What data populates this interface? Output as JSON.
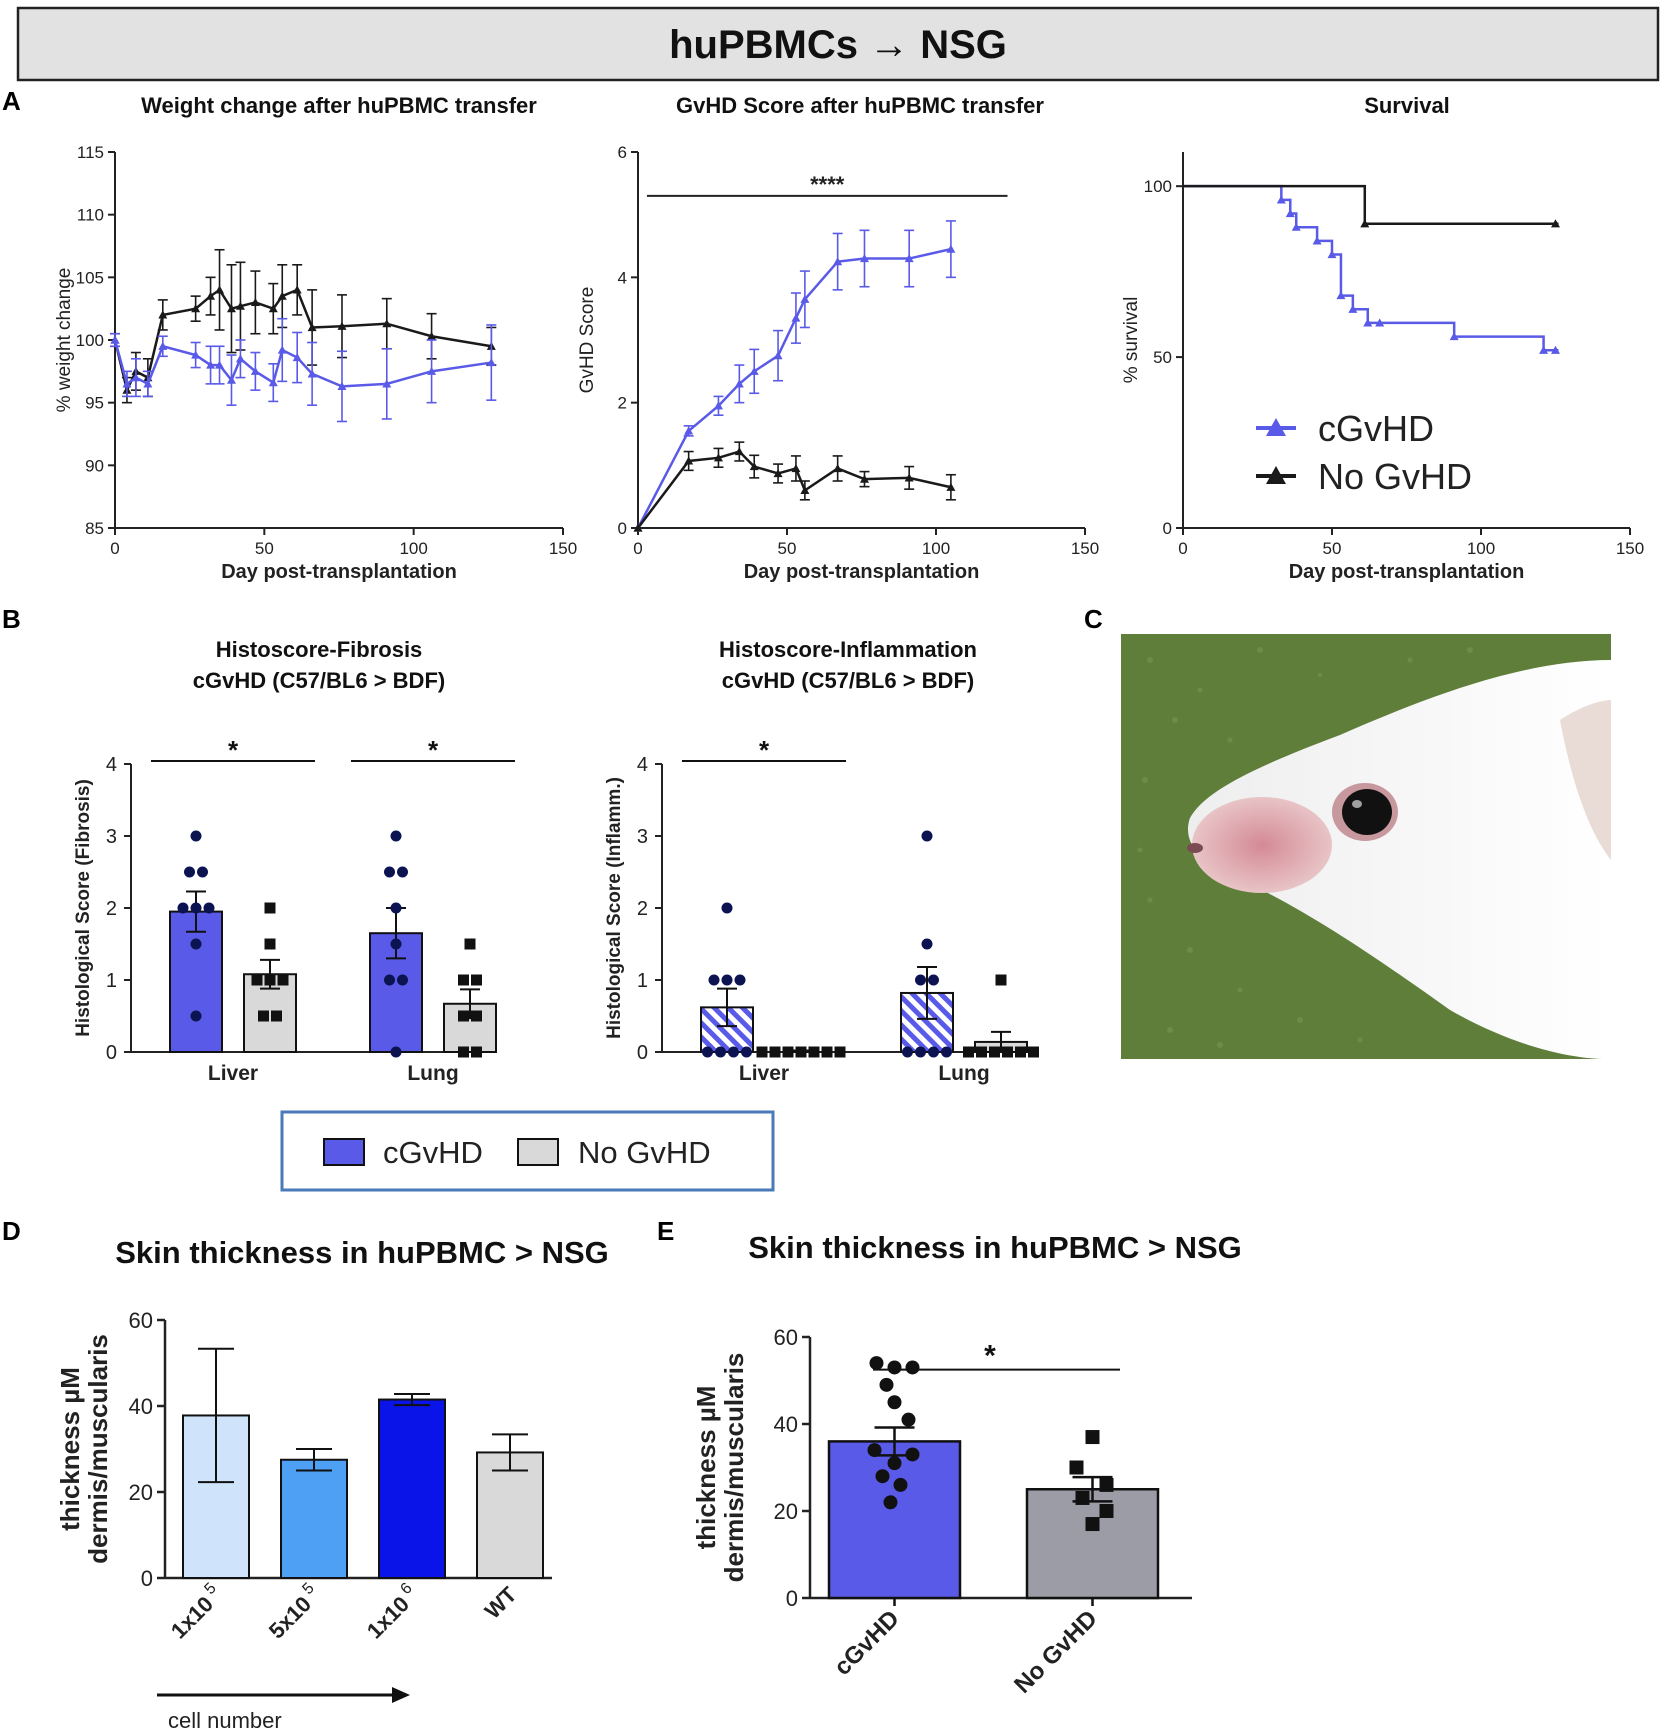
{
  "header": {
    "title": "huPBMCs → NSG"
  },
  "panels": {
    "A": "A",
    "B": "B",
    "C": "C",
    "D": "D",
    "E": "E"
  },
  "colors": {
    "cgvhd": "#5a5ae8",
    "nogvhd": "#1a1a1a",
    "grey_bar": "#d9d9d9",
    "dark_dot": "#0b1450",
    "legend_border": "#4a7ab8",
    "header_bg": "#e2e2e2"
  },
  "photo": {
    "alt_icon": "mouse-photo"
  },
  "chart_data": [
    {
      "id": "weight",
      "type": "line",
      "title": "Weight change after huPBMC transfer",
      "xlabel": "Day post-transplantation",
      "ylabel": "% weight change",
      "xlim": [
        0,
        150
      ],
      "ylim": [
        85,
        115
      ],
      "xticks": [
        "0",
        "50",
        "100",
        "150"
      ],
      "yticks": [
        "85",
        "90",
        "95",
        "100",
        "105",
        "110",
        "115"
      ],
      "series": [
        {
          "name": "No GvHD",
          "color": "#1a1a1a",
          "x": [
            0,
            4,
            7,
            11,
            16,
            27,
            32,
            35,
            39,
            42,
            47,
            53,
            56,
            61,
            66,
            76,
            91,
            106,
            126
          ],
          "y": [
            100,
            96,
            97.5,
            97,
            102,
            102.5,
            103.5,
            104,
            102.5,
            102.7,
            103,
            102.5,
            103.5,
            104,
            101,
            101.1,
            101.3,
            100.3,
            99.5
          ],
          "err": [
            0.5,
            1,
            1.5,
            1.5,
            1.2,
            1,
            1.5,
            3.2,
            3.5,
            3.5,
            2.5,
            2,
            2.5,
            2,
            3,
            2.5,
            2,
            1.8,
            1.5
          ]
        },
        {
          "name": "cGvHD",
          "color": "#5a5ae8",
          "x": [
            0,
            4,
            7,
            11,
            16,
            27,
            32,
            35,
            39,
            42,
            47,
            53,
            56,
            61,
            66,
            76,
            91,
            106,
            126
          ],
          "y": [
            100,
            96.5,
            97,
            96.5,
            99.5,
            98.8,
            98,
            98,
            96.8,
            98.5,
            97.5,
            96.6,
            99.2,
            98.6,
            97.3,
            96.3,
            96.5,
            97.5,
            98.2
          ],
          "err": [
            0.5,
            1,
            1.5,
            1,
            0.8,
            1,
            1.5,
            1.5,
            2,
            1.5,
            1.5,
            1.5,
            2.5,
            2,
            2.5,
            2.8,
            2.8,
            2.5,
            3
          ]
        }
      ]
    },
    {
      "id": "gvhd",
      "type": "line",
      "title": "GvHD Score after huPBMC transfer",
      "xlabel": "Day post-transplantation",
      "ylabel": "GvHD Score",
      "xlim": [
        0,
        150
      ],
      "ylim": [
        0,
        6
      ],
      "xticks": [
        "0",
        "50",
        "100",
        "150"
      ],
      "yticks": [
        "0",
        "2",
        "4",
        "6"
      ],
      "annotation": "****",
      "annotation_span": [
        3,
        124
      ],
      "annotation_y": 5.3,
      "series": [
        {
          "name": "cGvHD",
          "color": "#5a5ae8",
          "x": [
            0,
            17,
            27,
            34,
            39,
            47,
            53,
            56,
            67,
            76,
            91,
            105
          ],
          "y": [
            0,
            1.55,
            1.95,
            2.3,
            2.5,
            2.75,
            3.35,
            3.65,
            4.25,
            4.3,
            4.3,
            4.45
          ],
          "err": [
            0,
            0.08,
            0.15,
            0.3,
            0.35,
            0.4,
            0.4,
            0.45,
            0.45,
            0.45,
            0.45,
            0.45
          ]
        },
        {
          "name": "No GvHD",
          "color": "#1a1a1a",
          "x": [
            0,
            17,
            27,
            34,
            39,
            47,
            53,
            56,
            67,
            76,
            91,
            105
          ],
          "y": [
            0,
            1.07,
            1.12,
            1.22,
            0.98,
            0.87,
            0.95,
            0.6,
            0.95,
            0.78,
            0.8,
            0.65
          ],
          "err": [
            0,
            0.15,
            0.15,
            0.15,
            0.18,
            0.15,
            0.2,
            0.15,
            0.2,
            0.12,
            0.18,
            0.2
          ]
        }
      ]
    },
    {
      "id": "survival",
      "type": "line",
      "title": "Survival",
      "xlabel": "Day post-transplantation",
      "ylabel": "% survival",
      "xlim": [
        0,
        150
      ],
      "ylim": [
        0,
        110
      ],
      "xticks": [
        "0",
        "50",
        "100",
        "150"
      ],
      "yticks": [
        "0",
        "50",
        "100"
      ],
      "legend": [
        "cGvHD",
        "No GvHD"
      ],
      "series": [
        {
          "name": "cGvHD",
          "color": "#5a5ae8",
          "steps_x": [
            0,
            33,
            36,
            38,
            45,
            50,
            53,
            57,
            62,
            66,
            91,
            121,
            126
          ],
          "steps_y": [
            100,
            96,
            92,
            88,
            84,
            80,
            68,
            64,
            60,
            60,
            56,
            52,
            52
          ],
          "marks_x": [
            33,
            36,
            38,
            45,
            50,
            53,
            57,
            62,
            66,
            91,
            121,
            125
          ],
          "marks_y": [
            96,
            92,
            88,
            84,
            80,
            68,
            64,
            60,
            60,
            56,
            52,
            52
          ]
        },
        {
          "name": "No GvHD",
          "color": "#1a1a1a",
          "steps_x": [
            0,
            61,
            126
          ],
          "steps_y": [
            100,
            89,
            89
          ],
          "marks_x": [
            61,
            125
          ],
          "marks_y": [
            89,
            89
          ]
        }
      ]
    },
    {
      "id": "fibrosis",
      "type": "bar",
      "title": [
        "Histoscore-Fibrosis",
        "cGvHD (C57/BL6 > BDF)"
      ],
      "ylabel": "Histological Score (Fibrosis)",
      "ylim": [
        0,
        4
      ],
      "yticks": [
        "0",
        "1",
        "2",
        "3",
        "4"
      ],
      "categories": [
        "Liver",
        "Lung"
      ],
      "significance": [
        "*",
        "*"
      ],
      "series": [
        {
          "name": "cGvHD",
          "values": [
            1.95,
            1.65
          ],
          "err": [
            0.28,
            0.35
          ],
          "points": [
            [
              3,
              2.5,
              2.5,
              2,
              2,
              2,
              1.5,
              0.5
            ],
            [
              3,
              2.5,
              2.5,
              2,
              1.5,
              1,
              1,
              0
            ]
          ]
        },
        {
          "name": "No GvHD",
          "values": [
            1.08,
            0.67
          ],
          "err": [
            0.2,
            0.2
          ],
          "points": [
            [
              2,
              1.5,
              1,
              1,
              1,
              0.5,
              0.5
            ],
            [
              1.5,
              1,
              1,
              0.5,
              0.5,
              0,
              0
            ]
          ]
        }
      ]
    },
    {
      "id": "inflammation",
      "type": "bar",
      "title": [
        "Histoscore-Inflammation",
        "cGvHD (C57/BL6 > BDF)"
      ],
      "ylabel": "Histological Score (Inflamm.)",
      "ylim": [
        0,
        4
      ],
      "yticks": [
        "0",
        "1",
        "2",
        "3",
        "4"
      ],
      "categories": [
        "Liver",
        "Lung"
      ],
      "significance": [
        "*",
        ""
      ],
      "series": [
        {
          "name": "cGvHD",
          "values": [
            0.62,
            0.82
          ],
          "err": [
            0.26,
            0.36
          ],
          "points": [
            [
              2,
              1,
              1,
              1,
              0,
              0,
              0,
              0
            ],
            [
              3,
              1.5,
              1,
              1,
              0,
              0,
              0,
              0
            ]
          ]
        },
        {
          "name": "No GvHD",
          "values": [
            0.0,
            0.14
          ],
          "err": [
            0.02,
            0.14
          ],
          "points": [
            [
              0,
              0,
              0,
              0,
              0,
              0,
              0
            ],
            [
              1,
              0,
              0,
              0,
              0,
              0,
              0
            ]
          ]
        }
      ]
    },
    {
      "id": "skin_dose",
      "type": "bar",
      "title": "Skin thickness in huPBMC > NSG",
      "ylabel": [
        "thickness µM",
        "dermis/muscularis"
      ],
      "xlabel": "cell number",
      "ylim": [
        0,
        60
      ],
      "yticks": [
        "0",
        "20",
        "40",
        "60"
      ],
      "categories": [
        {
          "base": "1x10",
          "exp": "5"
        },
        {
          "base": "5x10",
          "exp": "5"
        },
        {
          "base": "1x10",
          "exp": "6"
        },
        {
          "base": "WT",
          "exp": ""
        }
      ],
      "values": [
        37.8,
        27.5,
        41.5,
        29.2
      ],
      "err": [
        15.5,
        2.5,
        1.3,
        4.2
      ],
      "colors": [
        "#cfe4fb",
        "#4da0f4",
        "#0a13e8",
        "#d9d9d9"
      ]
    },
    {
      "id": "skin_group",
      "type": "bar",
      "title": "Skin thickness in huPBMC > NSG",
      "ylabel": [
        "thickness µM",
        "dermis/muscularis"
      ],
      "ylim": [
        0,
        60
      ],
      "yticks": [
        "0",
        "20",
        "40",
        "60"
      ],
      "categories": [
        "cGvHD",
        "No GvHD"
      ],
      "values": [
        36,
        25
      ],
      "err": [
        3.2,
        2.8
      ],
      "significance": "*",
      "colors": [
        "#5a5ae8",
        "#9c9ca6"
      ],
      "points": [
        [
          54,
          53,
          53,
          49,
          45,
          41,
          34,
          33,
          31,
          28,
          26,
          22
        ],
        [
          37,
          30,
          26,
          23,
          20,
          17
        ]
      ]
    }
  ],
  "legend_b": {
    "items": [
      "cGvHD",
      "No GvHD"
    ]
  }
}
